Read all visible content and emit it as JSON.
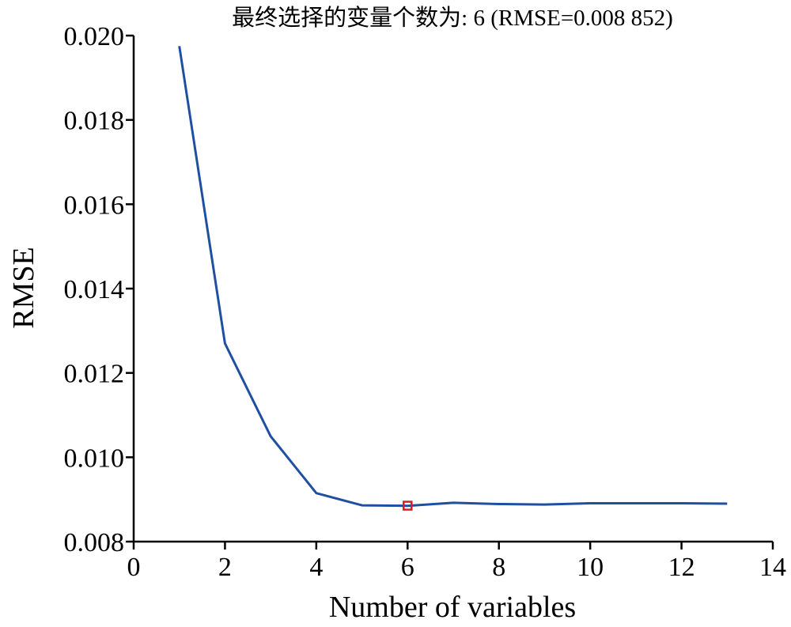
{
  "chart_data": {
    "type": "line",
    "title": "最终选择的变量个数为: 6  (RMSE=0.008 852)",
    "xlabel": "Number of variables",
    "ylabel": "RMSE",
    "xlim": [
      0,
      14
    ],
    "ylim": [
      0.008,
      0.02
    ],
    "xticks": [
      0,
      2,
      4,
      6,
      8,
      10,
      12,
      14
    ],
    "xtick_labels": [
      "0",
      "2",
      "4",
      "6",
      "8",
      "10",
      "12",
      "14"
    ],
    "yticks": [
      0.008,
      0.01,
      0.012,
      0.014,
      0.016,
      0.018,
      0.02
    ],
    "ytick_labels": [
      "0.008",
      "0.010",
      "0.012",
      "0.014",
      "0.016",
      "0.018",
      "0.020"
    ],
    "grid": false,
    "series": [
      {
        "x": [
          1,
          2,
          3,
          4,
          5,
          6,
          7,
          8,
          9,
          10,
          11,
          12,
          13
        ],
        "values": [
          0.01975,
          0.0127,
          0.0105,
          0.00915,
          0.00886,
          0.00885,
          0.00892,
          0.00889,
          0.00888,
          0.00891,
          0.00891,
          0.00891,
          0.0089
        ],
        "color": "#1f4fa0"
      }
    ],
    "highlight": {
      "x": 6,
      "y": 0.008852,
      "marker": "square",
      "color": "#d81e1e"
    }
  }
}
